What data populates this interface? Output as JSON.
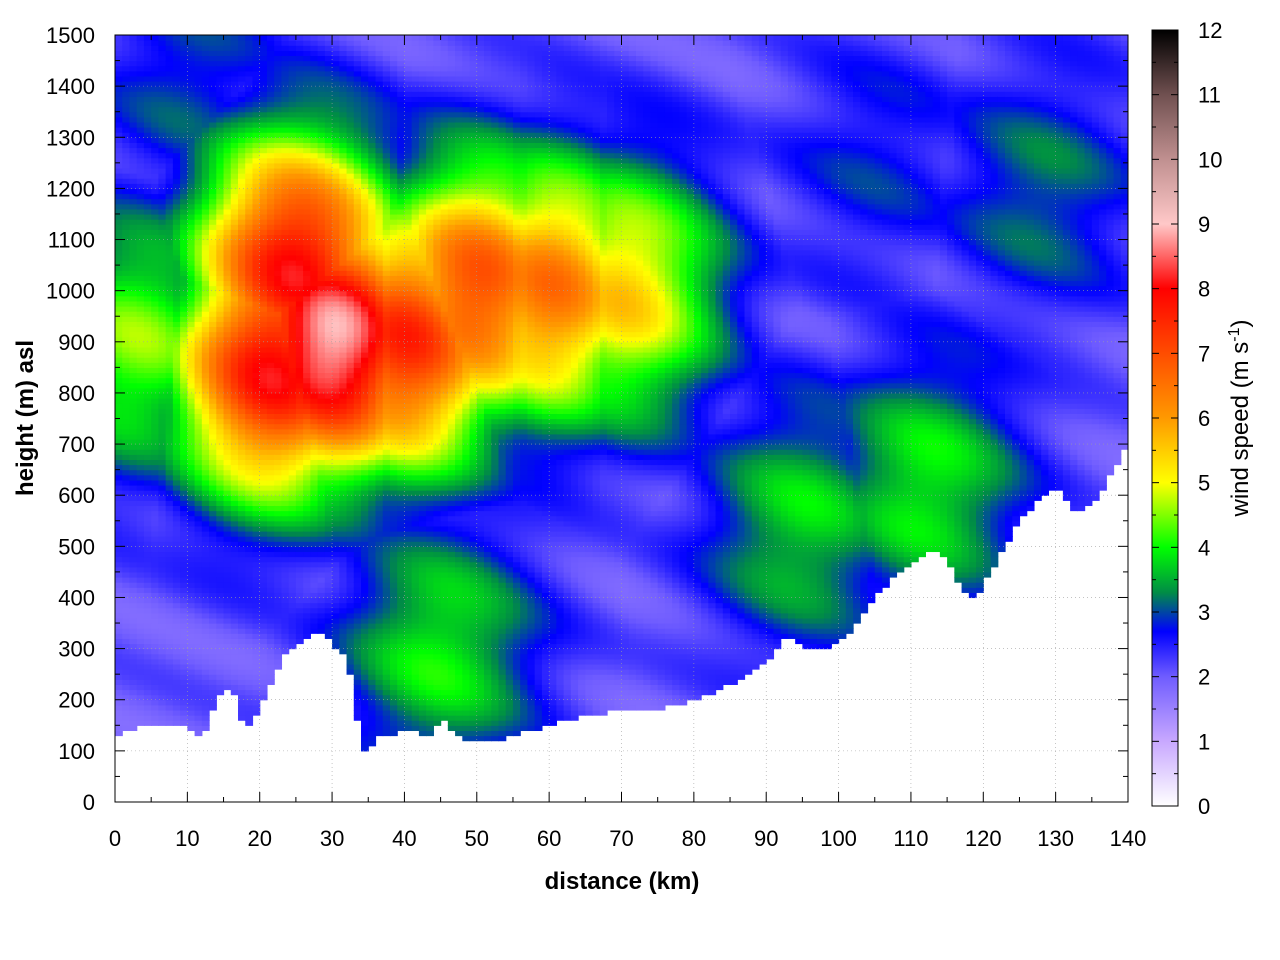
{
  "chart_data": {
    "type": "heatmap",
    "title": "",
    "xlabel": "distance (km)",
    "ylabel": "height (m) asl",
    "colorbar_label": "wind speed (m s",
    "colorbar_label_sup": "-1",
    "colorbar_label_end": ")",
    "xlim": [
      0,
      140
    ],
    "ylim": [
      0,
      1500
    ],
    "clim": [
      0,
      12
    ],
    "x_ticks": [
      0,
      10,
      20,
      30,
      40,
      50,
      60,
      70,
      80,
      90,
      100,
      110,
      120,
      130,
      140
    ],
    "x_tick_labels": [
      "0",
      "10",
      "20",
      "30",
      "40",
      "50",
      "60",
      "70",
      "80",
      "90",
      "100",
      "110",
      "120",
      "130",
      "140"
    ],
    "y_ticks": [
      0,
      100,
      200,
      300,
      400,
      500,
      600,
      700,
      800,
      900,
      1000,
      1100,
      1200,
      1300,
      1400,
      1500
    ],
    "y_tick_labels": [
      "0",
      "100",
      "200",
      "300",
      "400",
      "500",
      "600",
      "700",
      "800",
      "900",
      "1000",
      "1100",
      "1200",
      "1300",
      "1400",
      "1500"
    ],
    "colorbar_ticks": [
      0,
      1,
      2,
      3,
      4,
      5,
      6,
      7,
      8,
      9,
      10,
      11,
      12
    ],
    "colorbar_tick_labels": [
      "0",
      "1",
      "2",
      "3",
      "4",
      "5",
      "6",
      "7",
      "8",
      "9",
      "10",
      "11",
      "12"
    ],
    "grid": true,
    "colormap_stops": [
      {
        "value": 0,
        "color": "#ffffff"
      },
      {
        "value": 1,
        "color": "#c8a8ff"
      },
      {
        "value": 2,
        "color": "#6f5cff"
      },
      {
        "value": 2.7,
        "color": "#0000ff"
      },
      {
        "value": 3.3,
        "color": "#008c46"
      },
      {
        "value": 4,
        "color": "#00ff00"
      },
      {
        "value": 5,
        "color": "#ffff00"
      },
      {
        "value": 6,
        "color": "#ff9900"
      },
      {
        "value": 8,
        "color": "#ff0000"
      },
      {
        "value": 9,
        "color": "#ffc8c8"
      },
      {
        "value": 10,
        "color": "#c09090"
      },
      {
        "value": 11,
        "color": "#705050"
      },
      {
        "value": 12,
        "color": "#000000"
      }
    ],
    "terrain_height": {
      "distance": [
        0,
        2,
        4,
        6,
        8,
        10,
        12,
        14,
        16,
        18,
        20,
        22,
        24,
        26,
        28,
        30,
        31,
        32,
        33,
        34,
        35,
        36,
        38,
        40,
        42,
        44,
        45,
        46,
        48,
        50,
        52,
        55,
        60,
        65,
        70,
        75,
        80,
        85,
        90,
        93,
        96,
        99,
        102,
        105,
        108,
        111,
        113,
        115,
        117,
        119,
        121,
        123,
        125,
        127,
        130,
        133,
        136,
        138,
        140
      ],
      "height": [
        125,
        140,
        150,
        145,
        150,
        145,
        125,
        200,
        230,
        140,
        180,
        250,
        300,
        320,
        340,
        320,
        280,
        310,
        200,
        120,
        90,
        125,
        130,
        140,
        135,
        130,
        180,
        150,
        120,
        115,
        120,
        130,
        150,
        170,
        180,
        180,
        200,
        230,
        270,
        330,
        300,
        300,
        340,
        400,
        450,
        470,
        500,
        480,
        420,
        400,
        450,
        500,
        560,
        580,
        620,
        560,
        600,
        650,
        700
      ]
    },
    "cores": [
      {
        "distance": 30,
        "height": 900,
        "speed": 9.0
      },
      {
        "distance": 25,
        "height": 1050,
        "speed": 8.0
      },
      {
        "distance": 22,
        "height": 850,
        "speed": 8.0
      },
      {
        "distance": 40,
        "height": 900,
        "speed": 7.5
      },
      {
        "distance": 50,
        "height": 1000,
        "speed": 7.0
      },
      {
        "distance": 60,
        "height": 1000,
        "speed": 6.5
      },
      {
        "distance": 70,
        "height": 1000,
        "speed": 5.5
      },
      {
        "distance": 3,
        "height": 900,
        "speed": 4.5
      },
      {
        "distance": 45,
        "height": 300,
        "speed": 4.0
      },
      {
        "distance": 95,
        "height": 550,
        "speed": 3.8
      },
      {
        "distance": 112,
        "height": 620,
        "speed": 4.0
      },
      {
        "distance": 128,
        "height": 1200,
        "speed": 3.2
      },
      {
        "distance": 10,
        "height": 1400,
        "speed": 3.0
      },
      {
        "distance": 105,
        "height": 1250,
        "speed": 2.8
      }
    ],
    "background_speed": 2.0
  }
}
